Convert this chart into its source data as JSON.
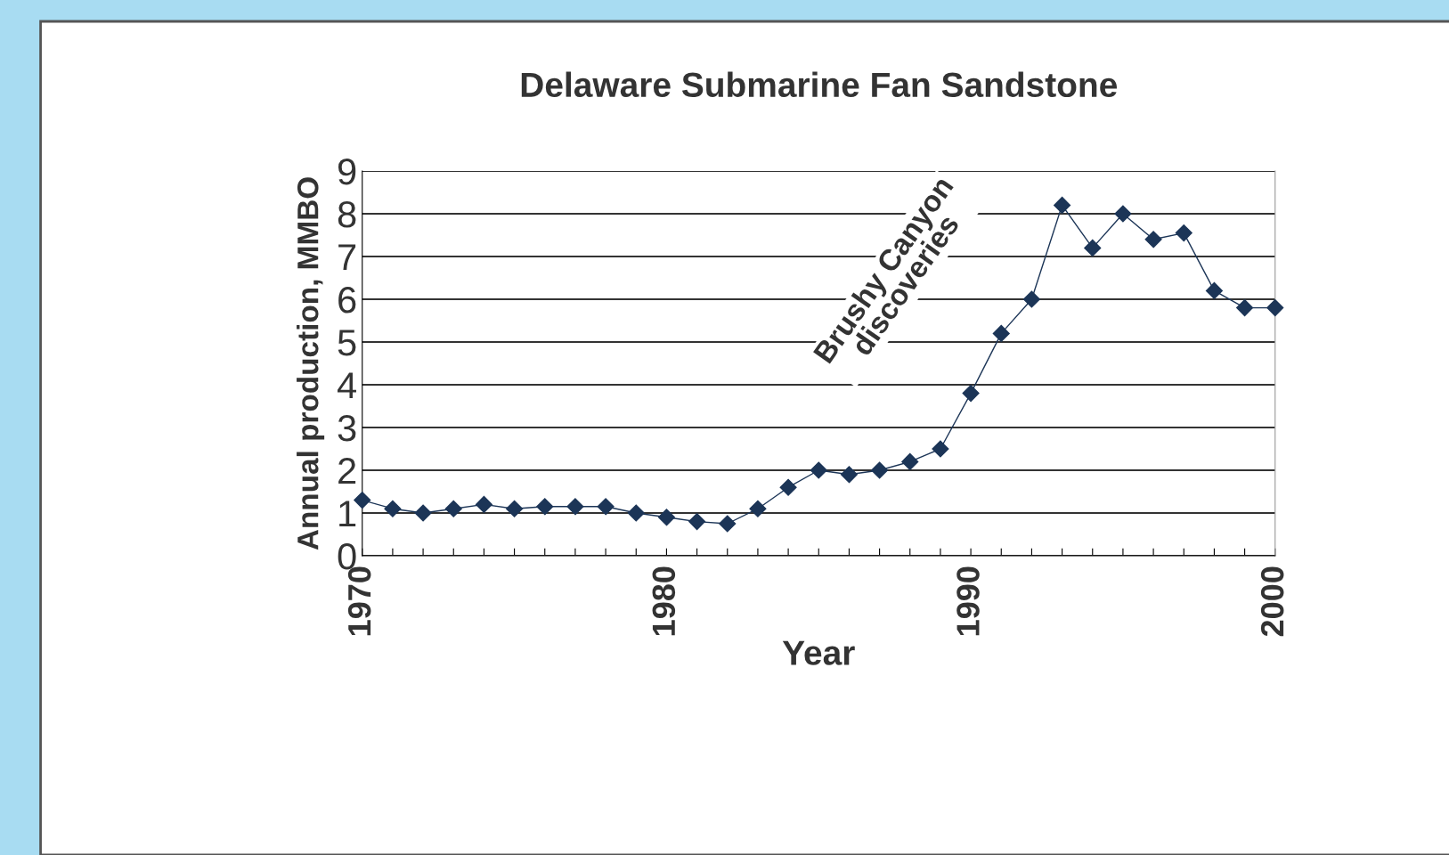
{
  "chart_data": {
    "type": "line",
    "title": "Delaware Submarine Fan Sandstone",
    "xlabel": "Year",
    "ylabel": "Annual production, MMBO",
    "x": [
      1970,
      1971,
      1972,
      1973,
      1974,
      1975,
      1976,
      1977,
      1978,
      1979,
      1980,
      1981,
      1982,
      1983,
      1984,
      1985,
      1986,
      1987,
      1988,
      1989,
      1990,
      1991,
      1992,
      1993,
      1994,
      1995,
      1996,
      1997,
      1998,
      1999,
      2000
    ],
    "series": [
      {
        "color": "#1c3557",
        "values": [
          1.3,
          1.1,
          1.0,
          1.1,
          1.2,
          1.1,
          1.15,
          1.15,
          1.15,
          1.0,
          0.9,
          0.8,
          0.75,
          1.1,
          1.6,
          2.0,
          1.9,
          2.0,
          2.2,
          2.5,
          3.8,
          5.2,
          6.0,
          8.2,
          7.2,
          8.0,
          7.4,
          7.55,
          6.2,
          5.8,
          5.8
        ]
      }
    ],
    "xlim": [
      1970,
      2000
    ],
    "ylim": [
      0,
      9
    ],
    "xticks": [
      1970,
      {
        "value": 1971,
        "label": null
      },
      {
        "value": 1972,
        "label": null
      },
      {
        "value": 1973,
        "label": null
      },
      {
        "value": 1974,
        "label": null
      },
      {
        "value": 1975,
        "label": null
      },
      {
        "value": 1976,
        "label": null
      },
      {
        "value": 1977,
        "label": null
      },
      {
        "value": 1978,
        "label": null
      },
      {
        "value": 1979,
        "label": null
      },
      1980,
      {
        "value": 1981,
        "label": null
      },
      {
        "value": 1982,
        "label": null
      },
      {
        "value": 1983,
        "label": null
      },
      {
        "value": 1984,
        "label": null
      },
      {
        "value": 1985,
        "label": null
      },
      {
        "value": 1986,
        "label": null
      },
      {
        "value": 1987,
        "label": null
      },
      {
        "value": 1988,
        "label": null
      },
      {
        "value": 1989,
        "label": null
      },
      1990,
      {
        "value": 1991,
        "label": null
      },
      {
        "value": 1992,
        "label": null
      },
      {
        "value": 1993,
        "label": null
      },
      {
        "value": 1994,
        "label": null
      },
      {
        "value": 1995,
        "label": null
      },
      {
        "value": 1996,
        "label": null
      },
      {
        "value": 1997,
        "label": null
      },
      {
        "value": 1998,
        "label": null
      },
      {
        "value": 1999,
        "label": null
      },
      2000
    ],
    "yticks": [
      0,
      1,
      2,
      3,
      4,
      5,
      6,
      7,
      8,
      9
    ],
    "grid": "y",
    "marker": "diamond",
    "line_style": "solid",
    "annotations": [
      "Brushy Canyon\ndiscoveries"
    ]
  }
}
